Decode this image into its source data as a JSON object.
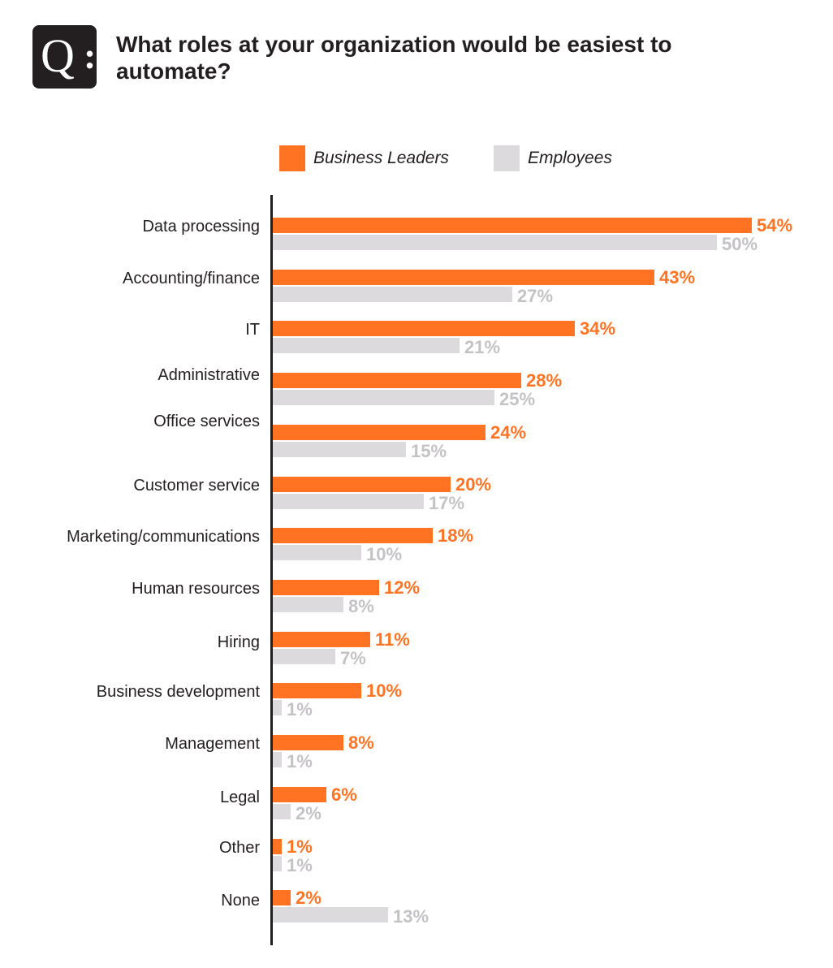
{
  "header": {
    "badge": {
      "q": "Q",
      "colon": ":"
    },
    "title": "What roles at your organization would be easiest to automate?"
  },
  "legend": [
    {
      "label": "Business Leaders",
      "color": "#ff7322"
    },
    {
      "label": "Employees",
      "color": "#dcdadd"
    }
  ],
  "colors": {
    "business_leaders_bar": "#ff7322",
    "business_leaders_text": "#ff7322",
    "employees_bar": "#dcdadd",
    "employees_text": "#c4c2c5",
    "axis": "#231f20"
  },
  "chart_data": {
    "type": "bar",
    "orientation": "horizontal",
    "title": "What roles at your organization would be easiest to automate?",
    "xlabel": "",
    "ylabel": "",
    "xlim": [
      0,
      54
    ],
    "grid": false,
    "legend_position": "top",
    "categories": [
      "Data processing",
      "Accounting/finance",
      "IT",
      "Administrative",
      "Office services",
      "Customer service",
      "Marketing/communications",
      "Human resources",
      "Hiring",
      "Business development",
      "Management",
      "Legal",
      "Other",
      "None"
    ],
    "series": [
      {
        "name": "Business Leaders",
        "values": [
          54,
          43,
          34,
          28,
          24,
          20,
          18,
          12,
          11,
          10,
          8,
          6,
          1,
          2
        ]
      },
      {
        "name": "Employees",
        "values": [
          50,
          27,
          21,
          25,
          15,
          17,
          10,
          8,
          7,
          1,
          1,
          2,
          1,
          13
        ]
      }
    ]
  },
  "rows": [
    {
      "category": "Data processing",
      "bl": "54%",
      "emp": "50%"
    },
    {
      "category": "Accounting/finance",
      "bl": "43%",
      "emp": "27%"
    },
    {
      "category": "IT",
      "bl": "34%",
      "emp": "21%"
    },
    {
      "category": "Administrative",
      "bl": "28%",
      "emp": "25%"
    },
    {
      "category": "Office services",
      "bl": "24%",
      "emp": "15%"
    },
    {
      "category": "Customer service",
      "bl": "20%",
      "emp": "17%"
    },
    {
      "category": "Marketing/communications",
      "bl": "18%",
      "emp": "10%"
    },
    {
      "category": "Human resources",
      "bl": "12%",
      "emp": "8%"
    },
    {
      "category": "Hiring",
      "bl": "11%",
      "emp": "7%"
    },
    {
      "category": "Business development",
      "bl": "10%",
      "emp": "1%"
    },
    {
      "category": "Management",
      "bl": "8%",
      "emp": "1%"
    },
    {
      "category": "Legal",
      "bl": "6%",
      "emp": "2%"
    },
    {
      "category": "Other",
      "bl": "1%",
      "emp": "1%"
    },
    {
      "category": "None",
      "bl": "2%",
      "emp": "13%"
    }
  ]
}
